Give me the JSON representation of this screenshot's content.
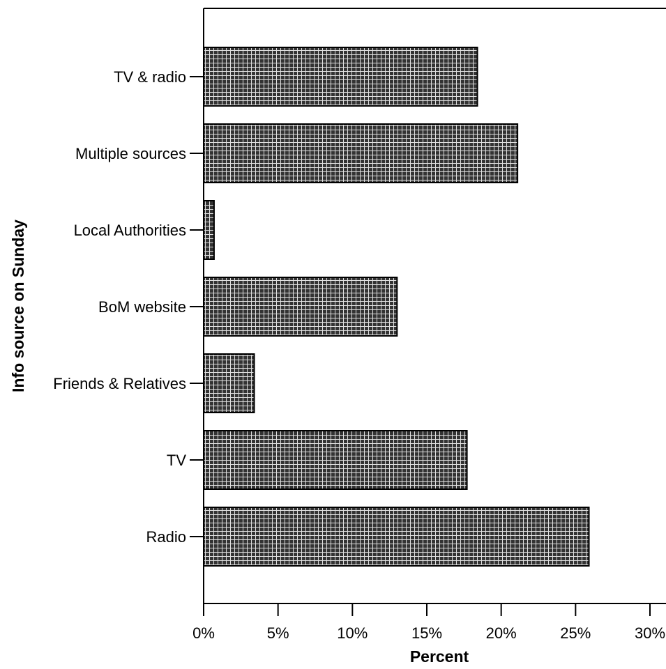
{
  "chart_data": {
    "type": "bar",
    "orientation": "horizontal",
    "categories": [
      "TV & radio",
      "Multiple sources",
      "Local Authorities",
      "BoM website",
      "Friends & Relatives",
      "TV",
      "Radio"
    ],
    "values": [
      18.4,
      21.1,
      0.7,
      13.0,
      3.4,
      17.7,
      25.9
    ],
    "xlabel": "Percent",
    "ylabel": "Info source on Sunday",
    "xlim": [
      0,
      30
    ],
    "xticks": [
      0,
      5,
      10,
      15,
      20,
      25,
      30
    ],
    "xtick_labels": [
      "0%",
      "5%",
      "10%",
      "15%",
      "20%",
      "25%",
      "30%"
    ],
    "grid": false,
    "bar_fill": "#333333",
    "bar_pattern": "grid-hatch",
    "pattern_line_color": "#ffffff"
  }
}
